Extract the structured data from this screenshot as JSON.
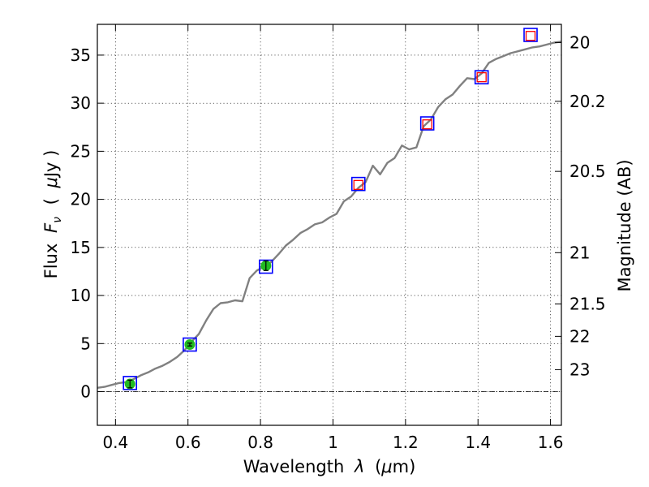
{
  "chart_data": {
    "type": "line",
    "xlabel_text": "Wavelength",
    "xlabel_symbol": "λ",
    "xlabel_unit_open": "(",
    "xlabel_unit_mu": "μ",
    "xlabel_unit_rest": "m)",
    "ylabel_text": "Flux",
    "ylabel_symbol": "F",
    "ylabel_symbol_sub": "ν",
    "ylabel_unit_open": "(",
    "ylabel_unit_mu": "μ",
    "ylabel_unit_rest": "Jy )",
    "y2label": "Magnitude (AB)",
    "xlim": [
      0.35,
      1.63
    ],
    "ylim": [
      -3.5,
      38.2
    ],
    "grid": true,
    "x_ticks": [
      0.4,
      0.6,
      0.8,
      1.0,
      1.2,
      1.4,
      1.6
    ],
    "x_tick_labels": [
      "0.4",
      "0.6",
      "0.8",
      "1",
      "1.2",
      "1.4",
      "1.6"
    ],
    "y_ticks": [
      0,
      5,
      10,
      15,
      20,
      25,
      30,
      35
    ],
    "y_tick_labels": [
      "0",
      "5",
      "10",
      "15",
      "20",
      "25",
      "30",
      "35"
    ],
    "y2_ticks": [
      20,
      20.2,
      20.5,
      21,
      21.5,
      22,
      23
    ],
    "y2_tick_labels": [
      "20",
      "20.2",
      "20.5",
      "21",
      "21.5",
      "22",
      "23"
    ],
    "zero_line": 0,
    "series": [
      {
        "kind": "spectrum",
        "color": "#808080",
        "x": [
          0.35,
          0.37,
          0.39,
          0.41,
          0.43,
          0.45,
          0.47,
          0.49,
          0.51,
          0.53,
          0.55,
          0.57,
          0.59,
          0.61,
          0.63,
          0.65,
          0.67,
          0.69,
          0.71,
          0.73,
          0.75,
          0.77,
          0.79,
          0.81,
          0.83,
          0.85,
          0.87,
          0.89,
          0.91,
          0.93,
          0.95,
          0.97,
          0.99,
          1.01,
          1.03,
          1.05,
          1.07,
          1.09,
          1.11,
          1.13,
          1.15,
          1.17,
          1.19,
          1.21,
          1.23,
          1.25,
          1.27,
          1.29,
          1.31,
          1.33,
          1.35,
          1.37,
          1.39,
          1.41,
          1.43,
          1.45,
          1.47,
          1.49,
          1.51,
          1.53,
          1.55,
          1.57,
          1.59,
          1.61,
          1.63
        ],
        "y": [
          0.4,
          0.5,
          0.7,
          0.9,
          1.0,
          1.3,
          1.7,
          2.0,
          2.4,
          2.7,
          3.1,
          3.6,
          4.3,
          5.2,
          6.0,
          7.4,
          8.6,
          9.2,
          9.3,
          9.5,
          9.4,
          11.8,
          12.6,
          13.0,
          13.5,
          14.3,
          15.2,
          15.8,
          16.5,
          16.9,
          17.4,
          17.6,
          18.1,
          18.5,
          19.8,
          20.3,
          21.2,
          21.8,
          23.5,
          22.6,
          23.8,
          24.3,
          25.6,
          25.2,
          25.4,
          27.6,
          28.3,
          29.6,
          30.4,
          30.9,
          31.8,
          32.6,
          32.5,
          33.1,
          34.2,
          34.6,
          34.9,
          35.2,
          35.4,
          35.6,
          35.8,
          35.9,
          36.1,
          36.3,
          36.4
        ]
      },
      {
        "kind": "model_points",
        "color": "#0000ff",
        "x": [
          0.44,
          0.605,
          0.815,
          1.07,
          1.26,
          1.41,
          1.545
        ],
        "y": [
          0.9,
          4.9,
          13.0,
          21.6,
          27.9,
          32.7,
          37.1
        ]
      },
      {
        "kind": "observed",
        "color": "#22bb22",
        "x": [
          0.44,
          0.605,
          0.815
        ],
        "y": [
          0.8,
          4.9,
          13.1
        ],
        "yerr": [
          0.4,
          0.15,
          0.5
        ]
      },
      {
        "kind": "upper_limits",
        "color": "#ff0000",
        "x": [
          1.07,
          1.26,
          1.41,
          1.545
        ],
        "y": [
          21.5,
          27.8,
          32.7,
          37.0
        ]
      }
    ]
  }
}
